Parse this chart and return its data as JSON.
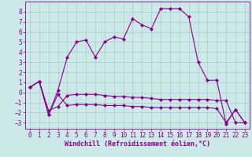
{
  "xlabel": "Windchill (Refroidissement éolien,°C)",
  "xlim": [
    -0.5,
    23.5
  ],
  "ylim": [
    -3.6,
    9.0
  ],
  "xticks": [
    0,
    1,
    2,
    3,
    4,
    5,
    6,
    7,
    8,
    9,
    10,
    11,
    12,
    13,
    14,
    15,
    16,
    17,
    18,
    19,
    20,
    21,
    22,
    23
  ],
  "yticks": [
    -3,
    -2,
    -1,
    0,
    1,
    2,
    3,
    4,
    5,
    6,
    7,
    8
  ],
  "background_color": "#cce8e8",
  "grid_color": "#aacccc",
  "line_color": "#880088",
  "y_main": [
    0.5,
    1.1,
    -2.2,
    0.2,
    3.5,
    5.0,
    5.2,
    3.5,
    5.0,
    5.5,
    5.3,
    7.3,
    6.7,
    6.3,
    8.3,
    8.3,
    8.3,
    7.5,
    3.0,
    1.2,
    1.2,
    -3.1,
    -1.7,
    -3.0
  ],
  "y_upper_flat": [
    0.5,
    1.1,
    -1.8,
    -1.4,
    -0.3,
    -0.2,
    -0.2,
    -0.2,
    -0.3,
    -0.4,
    -0.4,
    -0.5,
    -0.5,
    -0.6,
    -0.7,
    -0.7,
    -0.7,
    -0.7,
    -0.7,
    -0.7,
    -0.8,
    -0.8,
    -3.0,
    -3.0
  ],
  "y_lower_flat": [
    0.5,
    1.1,
    -2.2,
    -0.2,
    -1.3,
    -1.2,
    -1.2,
    -1.2,
    -1.3,
    -1.3,
    -1.3,
    -1.4,
    -1.4,
    -1.5,
    -1.5,
    -1.5,
    -1.5,
    -1.5,
    -1.5,
    -1.5,
    -1.6,
    -3.0,
    -1.7,
    -3.0
  ],
  "marker": "D",
  "marker_size": 2,
  "linewidth": 0.8,
  "tick_fontsize": 5.5,
  "xlabel_fontsize": 6.0
}
